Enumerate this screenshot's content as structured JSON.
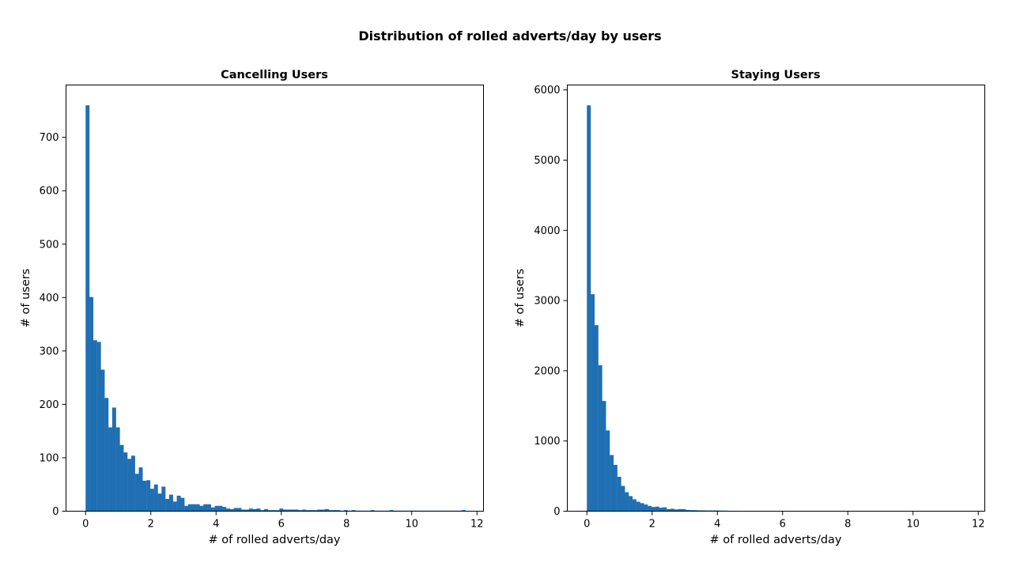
{
  "figure_title": "Distribution of rolled adverts/day by users",
  "colors": {
    "bar": "#1f6fb2"
  },
  "chart_data": [
    {
      "type": "bar",
      "title": "Cancelling Users",
      "xlabel": "# of rolled adverts/day",
      "ylabel": "# of users",
      "xlim": [
        -0.6,
        12.2
      ],
      "ylim": [
        0,
        798
      ],
      "xticks": [
        0,
        2,
        4,
        6,
        8,
        10,
        12
      ],
      "yticks": [
        0,
        100,
        200,
        300,
        400,
        500,
        600,
        700
      ],
      "bin_start": 0.0,
      "bin_width": 0.1165,
      "values": [
        760,
        401,
        320,
        317,
        265,
        212,
        157,
        194,
        157,
        124,
        110,
        98,
        104,
        70,
        82,
        57,
        58,
        42,
        50,
        33,
        46,
        23,
        31,
        18,
        29,
        25,
        10,
        13,
        13,
        13,
        10,
        13,
        13,
        7,
        10,
        10,
        8,
        5,
        4,
        6,
        6,
        3,
        3,
        5,
        4,
        5,
        2,
        4,
        2,
        2,
        2,
        5,
        3,
        3,
        3,
        3,
        2,
        3,
        2,
        2,
        2,
        3,
        3,
        4,
        2,
        2,
        2,
        1,
        2,
        1,
        2,
        1,
        1,
        1,
        1,
        2,
        1,
        1,
        1,
        1,
        2,
        1,
        1,
        1,
        1,
        1,
        1,
        1,
        1,
        1,
        1,
        1,
        1,
        1,
        1,
        1,
        1,
        1,
        1,
        2
      ]
    },
    {
      "type": "bar",
      "title": "Staying Users",
      "xlabel": "# of rolled adverts/day",
      "ylabel": "# of users",
      "xlim": [
        -0.6,
        12.2
      ],
      "ylim": [
        0,
        6070
      ],
      "xticks": [
        0,
        2,
        4,
        6,
        8,
        10,
        12
      ],
      "yticks": [
        0,
        1000,
        2000,
        3000,
        4000,
        5000,
        6000
      ],
      "bin_start": 0.0,
      "bin_width": 0.1165,
      "values": [
        5780,
        3090,
        2650,
        2080,
        1570,
        1150,
        800,
        660,
        490,
        360,
        270,
        215,
        170,
        135,
        115,
        95,
        75,
        60,
        65,
        50,
        55,
        30,
        35,
        25,
        30,
        30,
        18,
        15,
        15,
        12,
        12,
        10,
        10,
        10,
        10,
        8,
        8,
        6,
        6,
        6,
        5,
        5,
        5,
        5,
        4,
        4,
        4,
        4,
        4,
        4,
        3,
        3,
        3,
        3,
        3,
        3,
        3,
        3,
        3,
        2,
        2,
        2,
        2,
        2,
        2,
        2,
        2,
        2,
        2,
        2,
        2,
        2,
        2,
        2,
        2,
        2,
        2,
        2,
        2,
        2,
        2,
        2,
        2,
        2,
        2,
        2,
        2,
        2,
        2,
        2,
        2,
        2,
        2,
        2,
        2,
        2,
        2,
        2,
        2,
        2
      ]
    }
  ]
}
